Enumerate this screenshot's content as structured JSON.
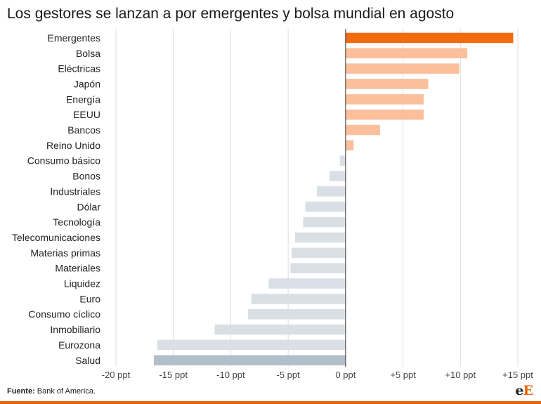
{
  "title": "Los gestores se lanzan a por emergentes y bolsa mundial en agosto",
  "source": {
    "label": "Fuente:",
    "text": " Bank of America."
  },
  "logo": {
    "lower": "e",
    "upper": "E"
  },
  "colors": {
    "highlight": "#f26b0f",
    "positive": "#fbbf9b",
    "negative": "#d9dfe5",
    "last": "#b2bec8",
    "grid": "#dddddd"
  },
  "chart_data": {
    "type": "bar",
    "orientation": "horizontal",
    "categories": [
      "Emergentes",
      "Bolsa",
      "Eléctricas",
      "Japón",
      "Energía",
      "EEUU",
      "Bancos",
      "Reino Unido",
      "Consumo básico",
      "Bonos",
      "Industriales",
      "Dólar",
      "Tecnología",
      "Telecomunicaciones",
      "Materias primas",
      "Materiales",
      "Liquidez",
      "Euro",
      "Consumo cíclico",
      "Inmobiliario",
      "Eurozona",
      "Salud"
    ],
    "values": [
      14.6,
      10.6,
      9.9,
      7.2,
      6.8,
      6.8,
      3.0,
      0.7,
      -0.5,
      -1.4,
      -2.5,
      -3.5,
      -3.7,
      -4.4,
      -4.7,
      -4.8,
      -6.7,
      -8.2,
      -8.5,
      -11.4,
      -16.4,
      -16.7
    ],
    "xlim": [
      -20,
      15
    ],
    "xticks": [
      -20,
      -15,
      -10,
      -5,
      0,
      5,
      10,
      15
    ],
    "xtick_labels": [
      "-20 ppt",
      "-15 ppt",
      "-10 ppt",
      "-5 ppt",
      "0 ppt",
      "+5 ppt",
      "+10 ppt",
      "+15 ppt"
    ],
    "grid": true
  }
}
